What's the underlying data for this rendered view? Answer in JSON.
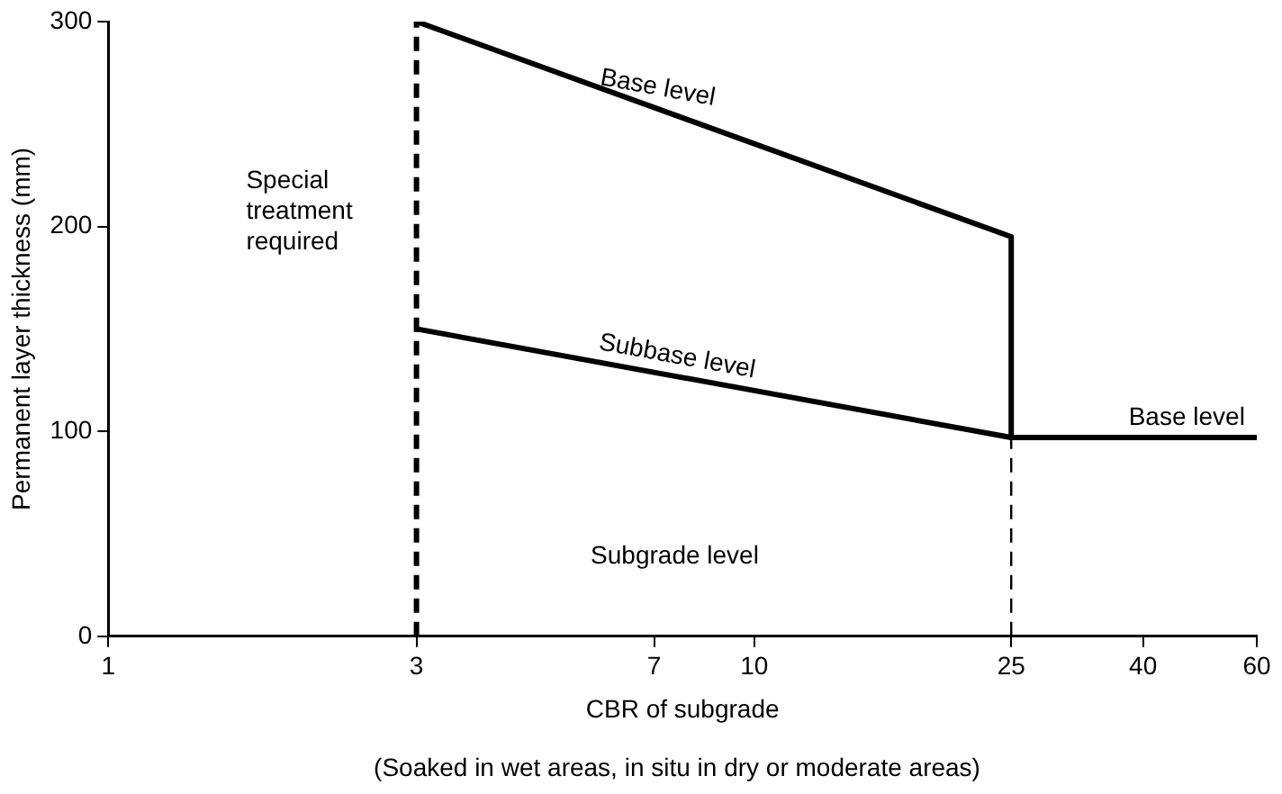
{
  "chart_data": {
    "type": "line",
    "xlabel": "CBR of subgrade",
    "ylabel": "Permanent layer thickness (mm)",
    "log": "x",
    "xlim": [
      1,
      60
    ],
    "xticks": [
      1,
      3,
      7,
      10,
      25,
      40,
      60
    ],
    "ylim": [
      0,
      300
    ],
    "yticks": [
      0,
      100,
      200,
      300
    ],
    "legend": false,
    "marker": "none",
    "series": [
      {
        "color": "#000000",
        "line_style": "solid",
        "x": [
          3,
          25,
          25,
          60
        ],
        "values": [
          300,
          195,
          97,
          97
        ]
      },
      {
        "color": "#000000",
        "line_style": "solid",
        "x": [
          3,
          25
        ],
        "values": [
          150,
          97
        ]
      }
    ],
    "ref_lines": [
      {
        "axis": "x",
        "value": 3,
        "color": "#000000",
        "line_style": "dashed"
      },
      {
        "axis": "x",
        "value": 25,
        "color": "#000000",
        "line_style": "dashed"
      }
    ],
    "annotations": [
      {
        "text": "Base level",
        "x": 7,
        "y": 258
      },
      {
        "text": "Subbase level",
        "x": 7.5,
        "y": 127
      },
      {
        "text": "Base level",
        "x": 38,
        "y": 97
      },
      "Special\ntreatment\nrequired",
      "Subgrade level",
      "(Soaked in wet areas, in situ in dry or moderate areas)"
    ]
  }
}
